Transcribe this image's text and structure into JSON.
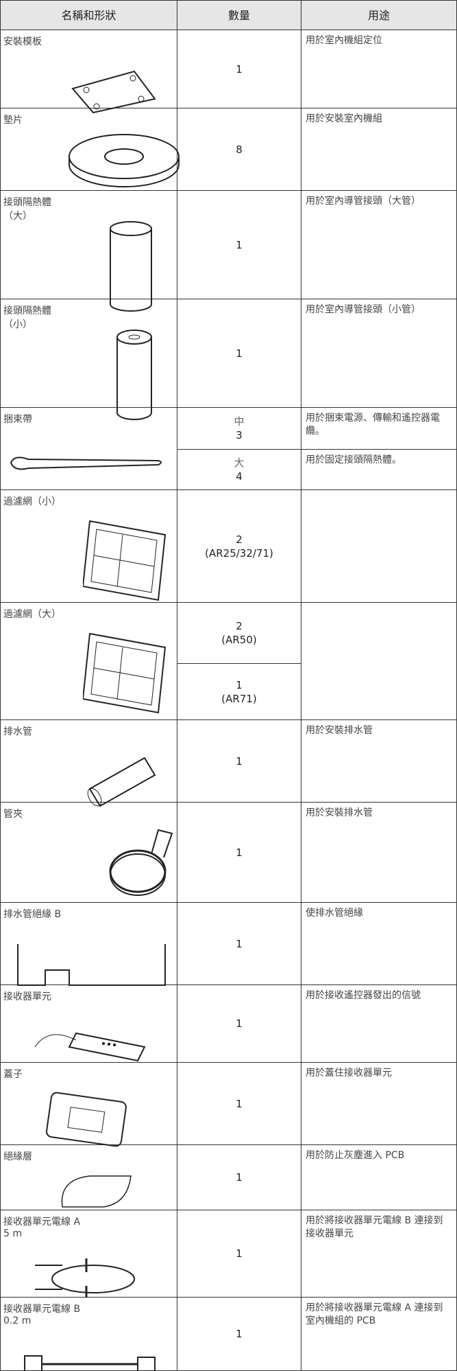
{
  "table": {
    "header": [
      "名稱和形狀",
      "數量",
      "用途"
    ],
    "rows": [
      {
        "name": [
          "安裝模板"
        ],
        "parts": [
          {
            "quantity": [
              "1"
            ],
            "usage": "用於室內機組定位"
          }
        ]
      },
      {
        "name": [
          "墊片"
        ],
        "parts": [
          {
            "quantity": [
              "8"
            ],
            "usage": "用於安裝室內機組"
          }
        ]
      },
      {
        "name": [
          "接頭隔熱體",
          "（大）"
        ],
        "parts": [
          {
            "quantity": [
              "1"
            ],
            "usage": "用於室內導管接頭（大管）"
          }
        ]
      },
      {
        "name": [
          "接頭隔熱體",
          "（小）"
        ],
        "parts": [
          {
            "quantity": [
              "1"
            ],
            "usage": "用於室內導管接頭（小管）"
          }
        ]
      },
      {
        "name": [
          "捆束帶"
        ],
        "parts": [
          {
            "quantity": [
              "中",
              "3"
            ],
            "usage": "用於捆束電源、傳輸和遙控器電纜。"
          },
          {
            "quantity": [
              "大",
              "4"
            ],
            "usage": "用於固定接頭隔熱體。"
          }
        ]
      },
      {
        "name": [
          "過濾網（小）"
        ],
        "parts": [
          {
            "quantity": [
              "2",
              "(AR25/32/71)"
            ]
          }
        ]
      },
      {
        "name": [
          "過濾網（大）"
        ],
        "parts": [
          {
            "quantity": [
              "2",
              "(AR50)"
            ]
          },
          {
            "quantity": [
              "1",
              "(AR71)"
            ]
          }
        ]
      },
      {
        "name": [
          "排水管"
        ],
        "parts": [
          {
            "quantity": [
              "1"
            ],
            "usage": "用於安裝排水管"
          }
        ]
      },
      {
        "name": [
          "管夾"
        ],
        "parts": [
          {
            "quantity": [
              "1"
            ],
            "usage": "用於安裝排水管"
          }
        ]
      },
      {
        "name": [
          "排水管絕緣 B"
        ],
        "parts": [
          {
            "quantity": [
              "1"
            ],
            "usage": "使排水管絕緣"
          }
        ]
      },
      {
        "name": [
          "接收器單元"
        ],
        "parts": [
          {
            "quantity": [
              "1"
            ],
            "usage": "用於接收遙控器發出的信號"
          }
        ]
      },
      {
        "name": [
          "蓋子"
        ],
        "parts": [
          {
            "quantity": [
              "1"
            ],
            "usage": "用於蓋住接收器單元"
          }
        ]
      },
      {
        "name": [
          "絕緣層"
        ],
        "parts": [
          {
            "quantity": [
              "1"
            ],
            "usage": "用於防止灰塵進入 PCB"
          }
        ]
      },
      {
        "name": [
          "接收器單元電線 A",
          "5 m"
        ],
        "parts": [
          {
            "quantity": [
              "1"
            ],
            "usage": "用於將接收器單元電線 B 連接到接收器單元"
          }
        ]
      },
      {
        "name": [
          "接收器單元電線 B",
          "0.2 m"
        ],
        "parts": [
          {
            "quantity": [
              "1"
            ],
            "usage": "用於將接收器單元電線 A 連接到室內機組的 PCB"
          }
        ]
      }
    ]
  }
}
